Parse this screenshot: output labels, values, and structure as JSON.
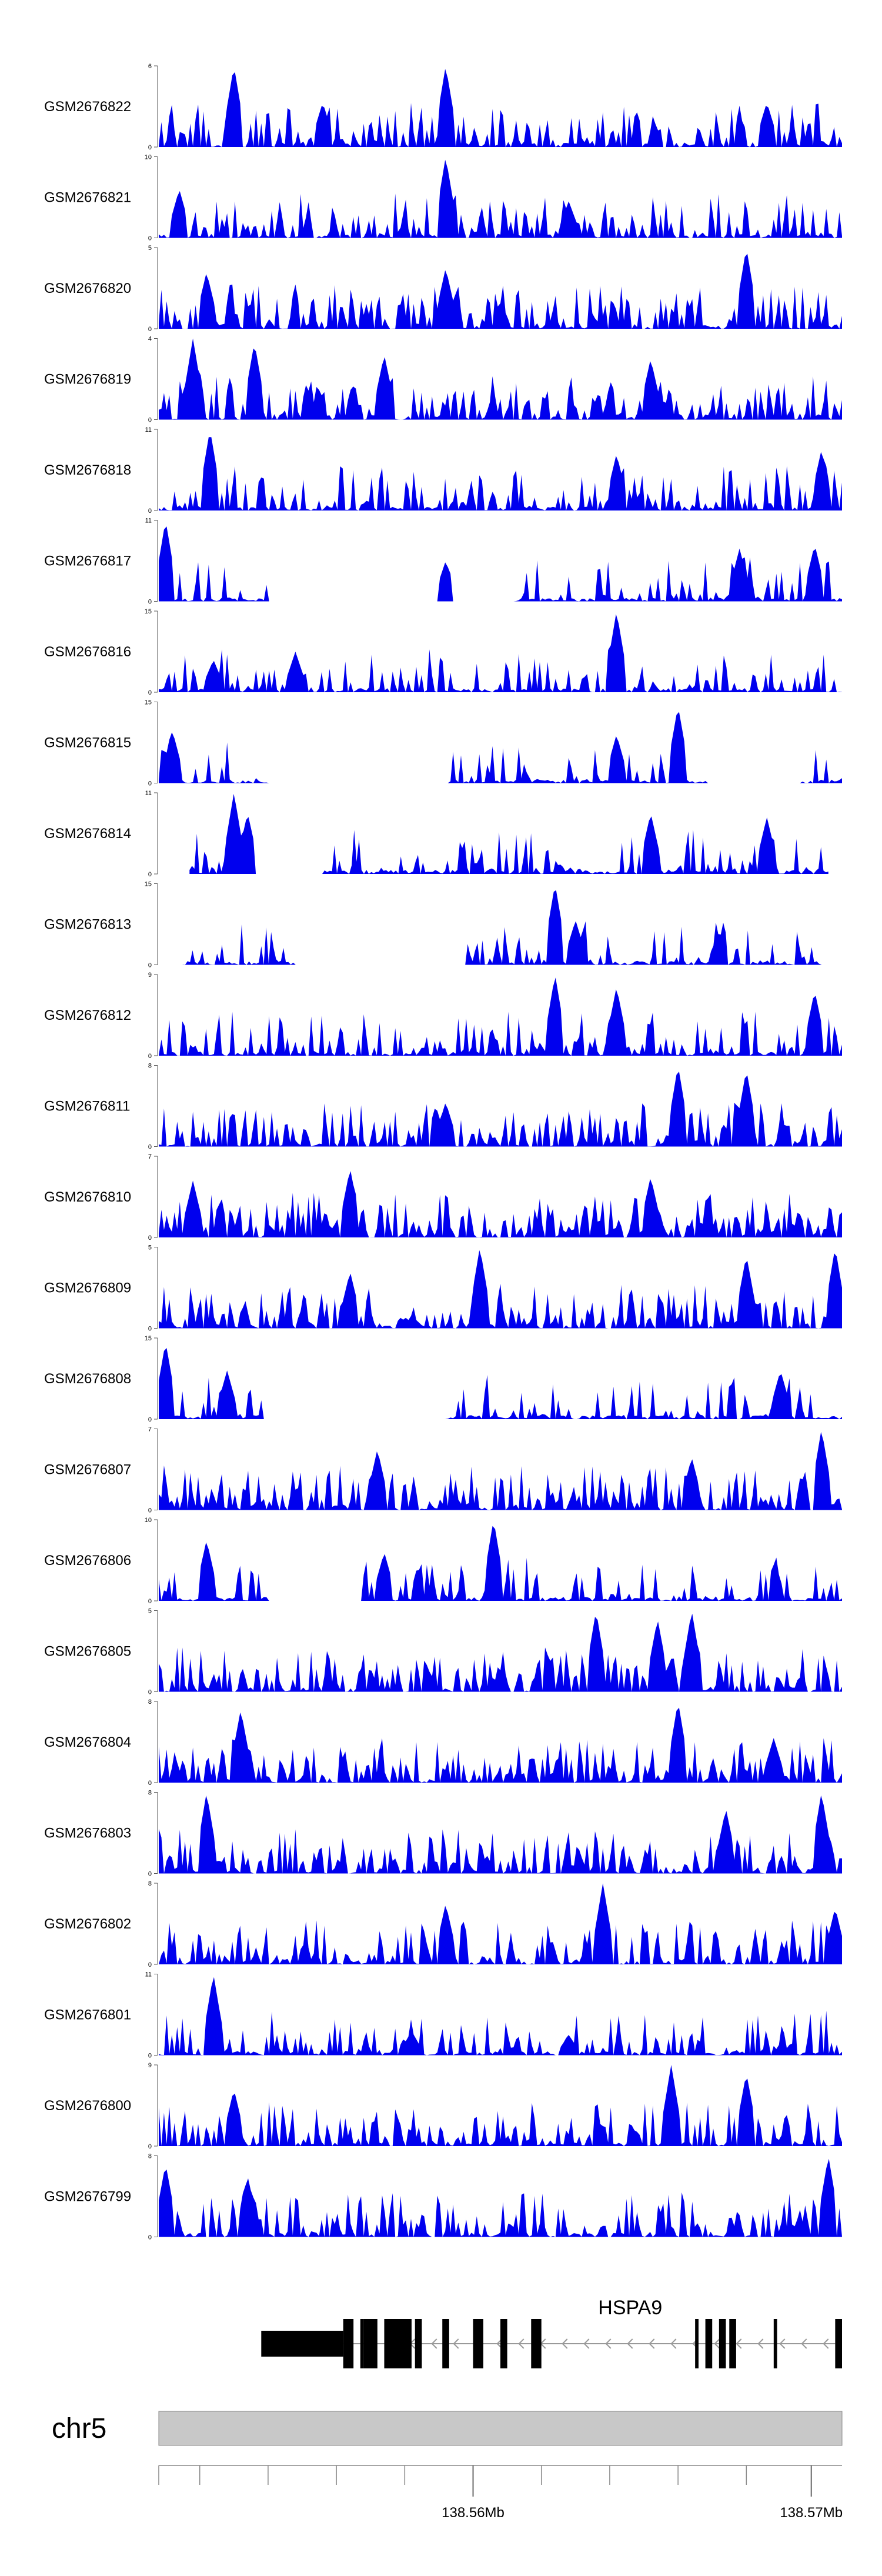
{
  "chart_data": {
    "type": "area",
    "title": "",
    "fill_color": "#0000ee",
    "tracks": [
      {
        "name": "GSM2676822",
        "ymax": "6",
        "ymin": "0",
        "seed": 22,
        "peaks": [
          [
            0.11,
            1.0
          ],
          [
            0.42,
            1.0
          ],
          [
            0.24,
            0.55
          ],
          [
            0.89,
            0.55
          ]
        ],
        "density": 0.85
      },
      {
        "name": "GSM2676821",
        "ymax": "10",
        "ymin": "0",
        "seed": 21,
        "peaks": [
          [
            0.42,
            1.0
          ],
          [
            0.03,
            0.6
          ],
          [
            0.6,
            0.45
          ]
        ],
        "density": 0.7
      },
      {
        "name": "GSM2676820",
        "ymax": "5",
        "ymin": "0",
        "seed": 20,
        "peaks": [
          [
            0.86,
            1.0
          ],
          [
            0.07,
            0.7
          ],
          [
            0.42,
            0.75
          ]
        ],
        "density": 1.0
      },
      {
        "name": "GSM2676819",
        "ymax": "4",
        "ymin": "0",
        "seed": 19,
        "peaks": [
          [
            0.05,
            1.0
          ],
          [
            0.14,
            0.95
          ],
          [
            0.33,
            0.8
          ],
          [
            0.72,
            0.75
          ]
        ],
        "density": 1.0
      },
      {
        "name": "GSM2676818",
        "ymax": "11",
        "ymin": "0",
        "seed": 18,
        "peaks": [
          [
            0.075,
            1.0
          ],
          [
            0.67,
            0.7
          ],
          [
            0.97,
            0.75
          ]
        ],
        "density": 0.6
      },
      {
        "name": "GSM2676817",
        "ymax": "11",
        "ymin": "0",
        "seed": 17,
        "peaks": [
          [
            0.01,
            1.0
          ],
          [
            0.42,
            0.5
          ],
          [
            0.85,
            0.65
          ],
          [
            0.96,
            0.7
          ]
        ],
        "density": 0.45,
        "gaps": [
          [
            0.16,
            0.41
          ],
          [
            0.43,
            0.52
          ]
        ]
      },
      {
        "name": "GSM2676816",
        "ymax": "15",
        "ymin": "0",
        "seed": 16,
        "peaks": [
          [
            0.67,
            1.0
          ],
          [
            0.2,
            0.5
          ],
          [
            0.08,
            0.4
          ]
        ],
        "density": 0.5
      },
      {
        "name": "GSM2676815",
        "ymax": "15",
        "ymin": "0",
        "seed": 15,
        "peaks": [
          [
            0.76,
            0.95
          ],
          [
            0.02,
            0.65
          ],
          [
            0.67,
            0.6
          ]
        ],
        "density": 0.35,
        "gaps": [
          [
            0.16,
            0.42
          ],
          [
            0.8,
            0.94
          ]
        ]
      },
      {
        "name": "GSM2676814",
        "ymax": "11",
        "ymin": "0",
        "seed": 14,
        "peaks": [
          [
            0.11,
            1.0
          ],
          [
            0.13,
            0.75
          ],
          [
            0.72,
            0.75
          ],
          [
            0.89,
            0.7
          ]
        ],
        "density": 0.5,
        "gaps": [
          [
            0.14,
            0.24
          ]
        ],
        "xstart": 0.045,
        "xend": 0.98
      },
      {
        "name": "GSM2676813",
        "ymax": "15",
        "ymin": "0",
        "seed": 13,
        "peaks": [
          [
            0.58,
            1.0
          ],
          [
            0.61,
            0.55
          ],
          [
            0.82,
            0.4
          ]
        ],
        "density": 0.45,
        "gaps": [
          [
            0.2,
            0.45
          ]
        ],
        "xstart": 0.035,
        "xend": 0.97
      },
      {
        "name": "GSM2676812",
        "ymax": "9",
        "ymin": "0",
        "seed": 12,
        "peaks": [
          [
            0.58,
            1.0
          ],
          [
            0.67,
            0.85
          ],
          [
            0.96,
            0.8
          ]
        ],
        "density": 0.65
      },
      {
        "name": "GSM2676811",
        "ymax": "8",
        "ymin": "0",
        "seed": 11,
        "peaks": [
          [
            0.76,
            1.0
          ],
          [
            0.86,
            0.95
          ],
          [
            0.42,
            0.55
          ]
        ],
        "density": 0.9
      },
      {
        "name": "GSM2676810",
        "ymax": "7",
        "ymin": "0",
        "seed": 10,
        "peaks": [
          [
            0.28,
            0.85
          ],
          [
            0.72,
            0.75
          ],
          [
            0.05,
            0.7
          ]
        ],
        "density": 1.0
      },
      {
        "name": "GSM2676809",
        "ymax": "5",
        "ymin": "0",
        "seed": 9,
        "peaks": [
          [
            0.47,
            1.0
          ],
          [
            0.99,
            1.0
          ],
          [
            0.28,
            0.7
          ],
          [
            0.86,
            0.9
          ]
        ],
        "density": 0.95
      },
      {
        "name": "GSM2676808",
        "ymax": "15",
        "ymin": "0",
        "seed": 8,
        "peaks": [
          [
            0.01,
            0.95
          ],
          [
            0.1,
            0.6
          ],
          [
            0.91,
            0.6
          ]
        ],
        "density": 0.4,
        "gaps": [
          [
            0.15,
            0.42
          ]
        ]
      },
      {
        "name": "GSM2676807",
        "ymax": "7",
        "ymin": "0",
        "seed": 7,
        "peaks": [
          [
            0.97,
            1.0
          ],
          [
            0.32,
            0.75
          ],
          [
            0.78,
            0.65
          ]
        ],
        "density": 1.0
      },
      {
        "name": "GSM2676806",
        "ymax": "10",
        "ymin": "0",
        "seed": 6,
        "peaks": [
          [
            0.49,
            1.0
          ],
          [
            0.07,
            0.75
          ],
          [
            0.33,
            0.6
          ]
        ],
        "density": 0.55,
        "gaps": [
          [
            0.16,
            0.3
          ]
        ]
      },
      {
        "name": "GSM2676805",
        "ymax": "5",
        "ymin": "0",
        "seed": 5,
        "peaks": [
          [
            0.64,
            1.0
          ],
          [
            0.78,
            1.0
          ],
          [
            0.73,
            0.9
          ]
        ],
        "density": 1.0
      },
      {
        "name": "GSM2676804",
        "ymax": "8",
        "ymin": "0",
        "seed": 4,
        "peaks": [
          [
            0.76,
            1.0
          ],
          [
            0.12,
            0.9
          ],
          [
            0.9,
            0.55
          ]
        ],
        "density": 0.9
      },
      {
        "name": "GSM2676803",
        "ymax": "8",
        "ymin": "0",
        "seed": 3,
        "peaks": [
          [
            0.07,
            1.0
          ],
          [
            0.97,
            1.0
          ],
          [
            0.83,
            0.8
          ]
        ],
        "density": 0.95
      },
      {
        "name": "GSM2676802",
        "ymax": "8",
        "ymin": "0",
        "seed": 2,
        "peaks": [
          [
            0.65,
            1.0
          ],
          [
            0.42,
            0.75
          ],
          [
            0.99,
            0.7
          ]
        ],
        "density": 0.85
      },
      {
        "name": "GSM2676801",
        "ymax": "11",
        "ymin": "0",
        "seed": 1,
        "peaks": [
          [
            0.08,
            1.0
          ],
          [
            0.37,
            0.3
          ],
          [
            0.6,
            0.25
          ]
        ],
        "density": 0.6
      },
      {
        "name": "GSM2676800",
        "ymax": "9",
        "ymin": "0",
        "seed": 100,
        "peaks": [
          [
            0.75,
            1.0
          ],
          [
            0.86,
            0.9
          ],
          [
            0.11,
            0.7
          ]
        ],
        "density": 0.75
      },
      {
        "name": "GSM2676799",
        "ymax": "8",
        "ymin": "0",
        "seed": 99,
        "peaks": [
          [
            0.98,
            1.0
          ],
          [
            0.01,
            0.9
          ],
          [
            0.13,
            0.75
          ]
        ],
        "density": 0.9
      }
    ],
    "gene": {
      "name": "HSPA9",
      "strand": "-",
      "exons_fraction": [
        [
          0.15,
          0.27
        ],
        [
          0.27,
          0.285
        ],
        [
          0.295,
          0.3
        ],
        [
          0.3,
          0.32
        ],
        [
          0.33,
          0.37
        ],
        [
          0.375,
          0.385
        ],
        [
          0.415,
          0.425
        ],
        [
          0.46,
          0.475
        ],
        [
          0.5,
          0.51
        ],
        [
          0.545,
          0.56
        ],
        [
          0.785,
          0.79
        ],
        [
          0.8,
          0.81
        ],
        [
          0.82,
          0.83
        ],
        [
          0.835,
          0.845
        ],
        [
          0.9,
          0.905
        ],
        [
          0.99,
          1.0
        ]
      ],
      "utr_fraction": [
        [
          0.15,
          0.27
        ]
      ],
      "intron_end": 0.99
    },
    "genome_axis": {
      "chromosome": "chr5",
      "ticks": [
        {
          "position": 0.46,
          "label": "138.56Mb"
        },
        {
          "position": 0.955,
          "label": "138.57Mb"
        }
      ],
      "minor_ticks": [
        0.0,
        0.06,
        0.16,
        0.26,
        0.36,
        0.56,
        0.66,
        0.76,
        0.86
      ]
    }
  }
}
